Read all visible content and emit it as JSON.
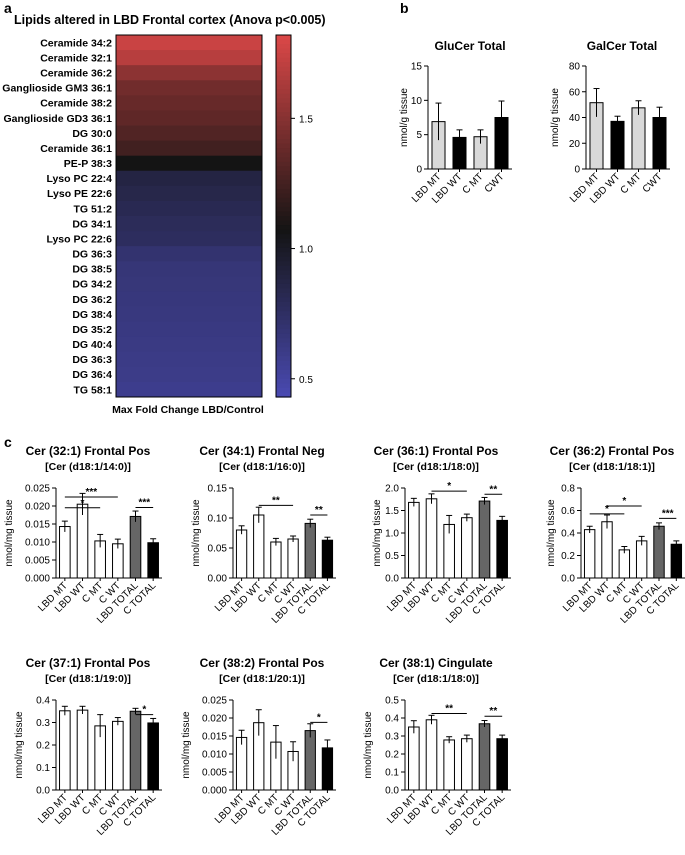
{
  "panel_labels": {
    "a": "a",
    "b": "b",
    "c": "c"
  },
  "colors": {
    "wt_bar": "#ffffff",
    "gal_light": "#d9d9d9",
    "total_dark": "#666666",
    "total_black": "#000000",
    "hm_high": "#dc4848",
    "hm_mid": "#141414",
    "hm_low": "#4a4ab2"
  },
  "chart_data": [
    {
      "id": "heatmap",
      "type": "heatmap",
      "title": "Lipids altered in LBD Frontal cortex (Anova p<0.005)",
      "xlabel": "Max Fold Change LBD/Control",
      "rows": [
        {
          "label": "Ceramide 34:2",
          "value": 1.75
        },
        {
          "label": "Ceramide 32:1",
          "value": 1.68
        },
        {
          "label": "Ceramide 36:2",
          "value": 1.52
        },
        {
          "label": "Ganglioside GM3 36:1",
          "value": 1.42
        },
        {
          "label": "Ceramide 38:2",
          "value": 1.38
        },
        {
          "label": "Ganglioside GD3 36:1",
          "value": 1.35
        },
        {
          "label": "DG 30:0",
          "value": 1.3
        },
        {
          "label": "Ceramide 36:1",
          "value": 1.24
        },
        {
          "label": "PE-P 38:3",
          "value": 1.07
        },
        {
          "label": "Lyso PC 22:4",
          "value": 0.88
        },
        {
          "label": "Lyso PE 22:6",
          "value": 0.85
        },
        {
          "label": "TG 51:2",
          "value": 0.82
        },
        {
          "label": "DG 34:1",
          "value": 0.79
        },
        {
          "label": "Lyso PC 22:6",
          "value": 0.77
        },
        {
          "label": "DG 36:3",
          "value": 0.7
        },
        {
          "label": "DG 38:5",
          "value": 0.67
        },
        {
          "label": "DG 34:2",
          "value": 0.66
        },
        {
          "label": "DG 36:2",
          "value": 0.65
        },
        {
          "label": "DG 38:4",
          "value": 0.64
        },
        {
          "label": "DG 35:2",
          "value": 0.63
        },
        {
          "label": "DG 40:4",
          "value": 0.62
        },
        {
          "label": "DG 36:3",
          "value": 0.61
        },
        {
          "label": "DG 36:4",
          "value": 0.6
        },
        {
          "label": "TG 58:1",
          "value": 0.58
        }
      ],
      "colorbar": {
        "min": 0.43,
        "max": 1.82,
        "mid": 1.07,
        "ticks": [
          0.5,
          1.0,
          1.5
        ],
        "tick_labels": [
          "0.5",
          "1.0",
          "1.5"
        ]
      }
    },
    {
      "id": "glucer",
      "type": "bar",
      "title": "GluCer Total",
      "ylabel": "nmol/g tissue",
      "ylim": [
        0,
        15
      ],
      "yticks": [
        0,
        5,
        10,
        15
      ],
      "categories": [
        "LBD MT",
        "LBD WT",
        "C MT",
        "CWT"
      ],
      "values": [
        6.9,
        4.6,
        4.7,
        7.5
      ],
      "errors": [
        2.7,
        1.1,
        1.0,
        2.4
      ],
      "fills": [
        "#d9d9d9",
        "#000000",
        "#d9d9d9",
        "#000000"
      ],
      "sig": []
    },
    {
      "id": "galcer",
      "type": "bar",
      "title": "GalCer Total",
      "ylabel": "nmol/g tissue",
      "ylim": [
        0,
        80
      ],
      "yticks": [
        0,
        20,
        40,
        60,
        80
      ],
      "categories": [
        "LBD MT",
        "LBD WT",
        "C MT",
        "CWT"
      ],
      "values": [
        51.5,
        37,
        47.5,
        40
      ],
      "errors": [
        11,
        4,
        5.5,
        8
      ],
      "fills": [
        "#d9d9d9",
        "#000000",
        "#d9d9d9",
        "#000000"
      ],
      "sig": []
    },
    {
      "id": "cer321",
      "type": "bar",
      "title": "Cer (32:1) Frontal Pos",
      "subtitle": "[Cer (d18:1/14:0)]",
      "ylabel": "nmol/mg tissue",
      "ylim": [
        0,
        0.025
      ],
      "yticks": [
        0,
        0.005,
        0.01,
        0.015,
        0.02,
        0.025
      ],
      "ytick_labels": [
        "0.000",
        "0.005",
        "0.010",
        "0.015",
        "0.020",
        "0.025"
      ],
      "categories": [
        "LBD MT",
        "LBD WT",
        "C MT",
        "C WT",
        "LBD TOTAL",
        "C TOTAL"
      ],
      "values": [
        0.0143,
        0.0205,
        0.0103,
        0.0095,
        0.0171,
        0.0098
      ],
      "errors": [
        0.0015,
        0.003,
        0.0018,
        0.0013,
        0.0015,
        0.0011
      ],
      "fills": [
        "#ffffff",
        "#ffffff",
        "#ffffff",
        "#ffffff",
        "#666666",
        "#000000"
      ],
      "sig": [
        {
          "from": 0,
          "to": 3,
          "level": 0.0225,
          "label": "***"
        },
        {
          "from": 0,
          "to": 2,
          "level": 0.0195,
          "label": "*"
        },
        {
          "from": 4,
          "to": 5,
          "level": 0.0196,
          "label": "***"
        }
      ]
    },
    {
      "id": "cer341",
      "type": "bar",
      "title": "Cer (34:1) Frontal Neg",
      "subtitle": "[Cer (d18:1/16:0)]",
      "ylabel": "nmol/mg tissue",
      "ylim": [
        0,
        0.15
      ],
      "yticks": [
        0,
        0.05,
        0.1,
        0.15
      ],
      "ytick_labels": [
        "0.00",
        "0.05",
        "0.10",
        "0.15"
      ],
      "categories": [
        "LBD MT",
        "LBD WT",
        "C MT",
        "C WT",
        "LBD TOTAL",
        "C TOTAL"
      ],
      "values": [
        0.08,
        0.105,
        0.06,
        0.065,
        0.091,
        0.063
      ],
      "errors": [
        0.007,
        0.013,
        0.006,
        0.005,
        0.007,
        0.005
      ],
      "fills": [
        "#ffffff",
        "#ffffff",
        "#ffffff",
        "#ffffff",
        "#666666",
        "#000000"
      ],
      "sig": [
        {
          "from": 1,
          "to": 3,
          "level": 0.121,
          "label": "**"
        },
        {
          "from": 4,
          "to": 5,
          "level": 0.105,
          "label": "**"
        }
      ]
    },
    {
      "id": "cer361",
      "type": "bar",
      "title": "Cer (36:1) Frontal Pos",
      "subtitle": "[Cer (d18:1/18:0)]",
      "ylabel": "nmol/mg tissue",
      "ylim": [
        0,
        2.0
      ],
      "yticks": [
        0,
        0.5,
        1.0,
        1.5,
        2.0
      ],
      "ytick_labels": [
        "0.0",
        "0.5",
        "1.0",
        "1.5",
        "2.0"
      ],
      "categories": [
        "LBD MT",
        "LBD WT",
        "C MT",
        "C WT",
        "LBD TOTAL",
        "C TOTAL"
      ],
      "values": [
        1.68,
        1.76,
        1.19,
        1.34,
        1.71,
        1.28
      ],
      "errors": [
        0.09,
        0.11,
        0.2,
        0.08,
        0.08,
        0.09
      ],
      "fills": [
        "#ffffff",
        "#ffffff",
        "#ffffff",
        "#ffffff",
        "#666666",
        "#000000"
      ],
      "sig": [
        {
          "from": 1,
          "to": 3,
          "level": 1.93,
          "label": "*"
        },
        {
          "from": 4,
          "to": 5,
          "level": 1.86,
          "label": "**"
        }
      ]
    },
    {
      "id": "cer362",
      "type": "bar",
      "title": "Cer (36:2) Frontal Pos",
      "subtitle": "[Cer (d18:1/18:1)]",
      "ylabel": "nmol/mg tissue",
      "ylim": [
        0,
        0.8
      ],
      "yticks": [
        0,
        0.2,
        0.4,
        0.6,
        0.8
      ],
      "ytick_labels": [
        "0.0",
        "0.2",
        "0.4",
        "0.6",
        "0.8"
      ],
      "categories": [
        "LBD MT",
        "LBD WT",
        "C MT",
        "C WT",
        "LBD TOTAL",
        "C TOTAL"
      ],
      "values": [
        0.43,
        0.5,
        0.25,
        0.33,
        0.46,
        0.3
      ],
      "errors": [
        0.03,
        0.06,
        0.03,
        0.04,
        0.03,
        0.03
      ],
      "fills": [
        "#ffffff",
        "#ffffff",
        "#ffffff",
        "#ffffff",
        "#666666",
        "#000000"
      ],
      "sig": [
        {
          "from": 1,
          "to": 3,
          "level": 0.64,
          "label": "*"
        },
        {
          "from": 0,
          "to": 2,
          "level": 0.57,
          "label": "*"
        },
        {
          "from": 4,
          "to": 5,
          "level": 0.53,
          "label": "***"
        }
      ]
    },
    {
      "id": "cer371",
      "type": "bar",
      "title": "Cer (37:1) Frontal Pos",
      "subtitle": "[Cer (d18:1/19:0)]",
      "ylabel": "nmol/mg tissue",
      "ylim": [
        0,
        0.4
      ],
      "yticks": [
        0,
        0.1,
        0.2,
        0.3,
        0.4
      ],
      "ytick_labels": [
        "0.0",
        "0.1",
        "0.2",
        "0.3",
        "0.4"
      ],
      "categories": [
        "LBD MT",
        "LBD WT",
        "C MT",
        "C WT",
        "LBD TOTAL",
        "C TOTAL"
      ],
      "values": [
        0.352,
        0.355,
        0.285,
        0.305,
        0.35,
        0.298
      ],
      "errors": [
        0.02,
        0.017,
        0.05,
        0.017,
        0.013,
        0.02
      ],
      "fills": [
        "#ffffff",
        "#ffffff",
        "#ffffff",
        "#ffffff",
        "#666666",
        "#000000"
      ],
      "sig": [
        {
          "from": 4,
          "to": 5,
          "level": 0.335,
          "label": "*"
        }
      ]
    },
    {
      "id": "cer382",
      "type": "bar",
      "title": "Cer (38:2) Frontal Pos",
      "subtitle": "[Cer (d18:1/20:1)]",
      "ylabel": "nmol/mg tissue",
      "ylim": [
        0,
        0.025
      ],
      "yticks": [
        0,
        0.005,
        0.01,
        0.015,
        0.02,
        0.025
      ],
      "ytick_labels": [
        "0.000",
        "0.005",
        "0.010",
        "0.015",
        "0.020",
        "0.025"
      ],
      "categories": [
        "LBD MT",
        "LBD WT",
        "C MT",
        "C WT",
        "LBD TOTAL",
        "C TOTAL"
      ],
      "values": [
        0.0146,
        0.0187,
        0.0133,
        0.0107,
        0.0165,
        0.0117
      ],
      "errors": [
        0.002,
        0.0036,
        0.0046,
        0.0027,
        0.0019,
        0.0022
      ],
      "fills": [
        "#ffffff",
        "#ffffff",
        "#ffffff",
        "#ffffff",
        "#666666",
        "#000000"
      ],
      "sig": [
        {
          "from": 4,
          "to": 5,
          "level": 0.0188,
          "label": "*"
        }
      ]
    },
    {
      "id": "cer381",
      "type": "bar",
      "title": "Cer (38:1) Cingulate",
      "subtitle": "[Cer (d18:1/18:0)]",
      "ylabel": "nmol/mg tissue",
      "ylim": [
        0,
        0.5
      ],
      "yticks": [
        0,
        0.1,
        0.2,
        0.3,
        0.4,
        0.5
      ],
      "ytick_labels": [
        "0.0",
        "0.1",
        "0.2",
        "0.3",
        "0.4",
        "0.5"
      ],
      "categories": [
        "LBD MT",
        "LBD WT",
        "C MT",
        "C WT",
        "LBD TOTAL",
        "C TOTAL"
      ],
      "values": [
        0.35,
        0.39,
        0.278,
        0.285,
        0.368,
        0.285
      ],
      "errors": [
        0.035,
        0.025,
        0.018,
        0.02,
        0.018,
        0.02
      ],
      "fills": [
        "#ffffff",
        "#ffffff",
        "#ffffff",
        "#ffffff",
        "#666666",
        "#000000"
      ],
      "sig": [
        {
          "from": 1,
          "to": 3,
          "level": 0.425,
          "label": "**"
        },
        {
          "from": 4,
          "to": 5,
          "level": 0.41,
          "label": "**"
        }
      ]
    }
  ]
}
